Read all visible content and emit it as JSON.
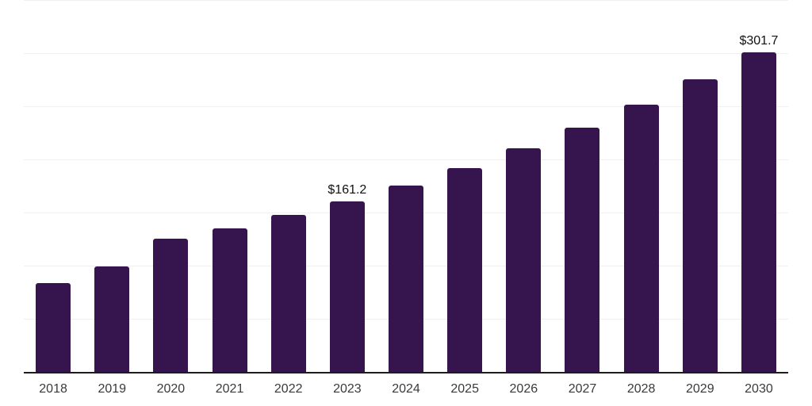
{
  "chart_data": {
    "type": "bar",
    "title": "",
    "xlabel": "",
    "ylabel": "",
    "categories": [
      "2018",
      "2019",
      "2020",
      "2021",
      "2022",
      "2023",
      "2024",
      "2025",
      "2026",
      "2027",
      "2028",
      "2029",
      "2030"
    ],
    "values": [
      84.6,
      100.2,
      125.9,
      136.1,
      148.5,
      161.2,
      176.3,
      192.8,
      210.9,
      230.6,
      252.2,
      275.8,
      301.7
    ],
    "data_labels": [
      "",
      "",
      "",
      "",
      "",
      "$161.2",
      "",
      "",
      "",
      "",
      "",
      "",
      "$301.7"
    ],
    "ylim": [
      0,
      350
    ],
    "gridline_interval": 50,
    "grid": true,
    "legend": false,
    "colors": {
      "bar": "#36154e",
      "axis": "#1d1d1d",
      "grid": "#f0f0f0",
      "tick_label": "#3a3a3a",
      "value_label": "#111111",
      "background": "#ffffff"
    }
  }
}
